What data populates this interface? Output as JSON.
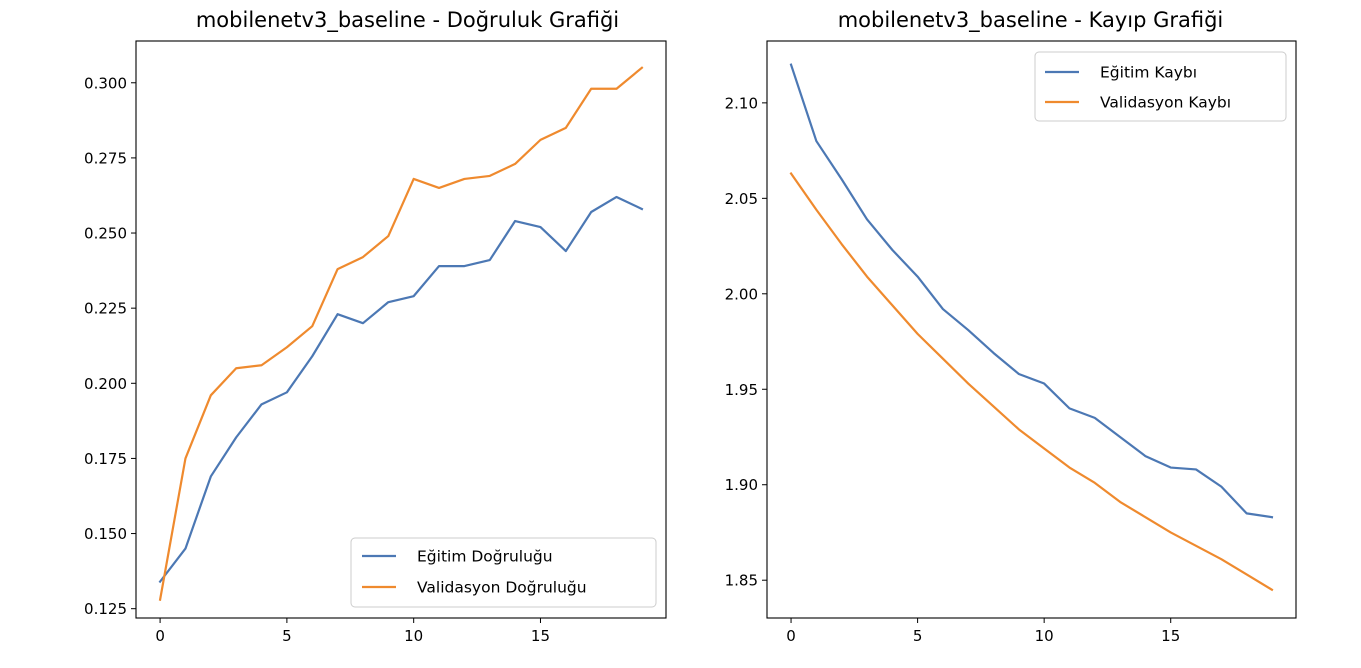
{
  "colors": {
    "train": "#4c78b4",
    "val": "#ef8a2e"
  },
  "chart_data": [
    {
      "type": "line",
      "title": "mobilenetv3_baseline - Doğruluk Grafiği",
      "xlabel": "",
      "ylabel": "",
      "xlim": [
        -0.95,
        19.95
      ],
      "ylim": [
        0.1219,
        0.3139
      ],
      "xticks": [
        0,
        5,
        10,
        15
      ],
      "xtick_labels": [
        "0",
        "5",
        "10",
        "15"
      ],
      "yticks": [
        0.125,
        0.15,
        0.175,
        0.2,
        0.225,
        0.25,
        0.275,
        0.3
      ],
      "ytick_labels": [
        "0.125",
        "0.150",
        "0.175",
        "0.200",
        "0.225",
        "0.250",
        "0.275",
        "0.300"
      ],
      "legend_position": "lower-right",
      "grid": false,
      "x": [
        0,
        1,
        2,
        3,
        4,
        5,
        6,
        7,
        8,
        9,
        10,
        11,
        12,
        13,
        14,
        15,
        16,
        17,
        18,
        19
      ],
      "series": [
        {
          "name": "Eğitim Doğruluğu",
          "color_key": "train",
          "values": [
            0.134,
            0.145,
            0.169,
            0.182,
            0.193,
            0.197,
            0.209,
            0.223,
            0.22,
            0.227,
            0.229,
            0.239,
            0.239,
            0.241,
            0.254,
            0.252,
            0.244,
            0.257,
            0.262,
            0.258
          ]
        },
        {
          "name": "Validasyon Doğruluğu",
          "color_key": "val",
          "values": [
            0.128,
            0.175,
            0.196,
            0.205,
            0.206,
            0.212,
            0.219,
            0.238,
            0.242,
            0.249,
            0.268,
            0.265,
            0.268,
            0.269,
            0.273,
            0.281,
            0.285,
            0.298,
            0.298,
            0.305
          ]
        }
      ]
    },
    {
      "type": "line",
      "title": "mobilenetv3_baseline - Kayıp Grafiği",
      "xlabel": "",
      "ylabel": "",
      "xlim": [
        -0.95,
        19.95
      ],
      "ylim": [
        1.8302,
        2.1324
      ],
      "xticks": [
        0,
        5,
        10,
        15
      ],
      "xtick_labels": [
        "0",
        "5",
        "10",
        "15"
      ],
      "yticks": [
        1.85,
        1.9,
        1.95,
        2.0,
        2.05,
        2.1
      ],
      "ytick_labels": [
        "1.85",
        "1.90",
        "1.95",
        "2.00",
        "2.05",
        "2.10"
      ],
      "legend_position": "upper-right",
      "grid": false,
      "x": [
        0,
        1,
        2,
        3,
        4,
        5,
        6,
        7,
        8,
        9,
        10,
        11,
        12,
        13,
        14,
        15,
        16,
        17,
        18,
        19
      ],
      "series": [
        {
          "name": "Eğitim Kaybı",
          "color_key": "train",
          "values": [
            2.12,
            2.08,
            2.06,
            2.039,
            2.023,
            2.009,
            1.992,
            1.981,
            1.969,
            1.958,
            1.953,
            1.94,
            1.935,
            1.925,
            1.915,
            1.909,
            1.908,
            1.899,
            1.885,
            1.883
          ]
        },
        {
          "name": "Validasyon Kaybı",
          "color_key": "val",
          "values": [
            2.063,
            2.044,
            2.026,
            2.009,
            1.994,
            1.979,
            1.966,
            1.953,
            1.941,
            1.929,
            1.919,
            1.909,
            1.901,
            1.891,
            1.883,
            1.875,
            1.868,
            1.861,
            1.853,
            1.845
          ]
        }
      ]
    }
  ]
}
